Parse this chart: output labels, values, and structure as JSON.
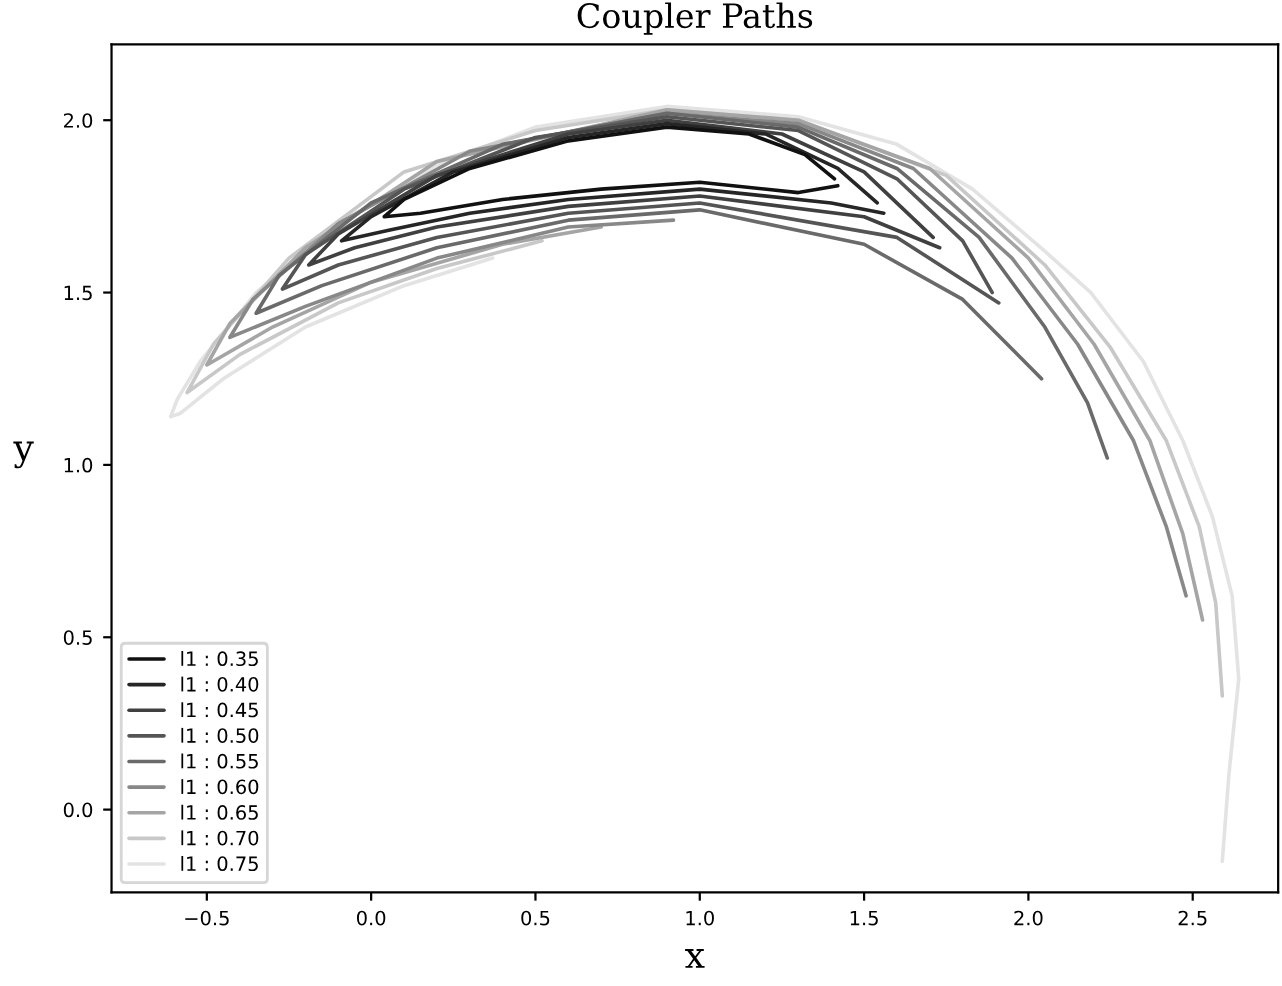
{
  "chart_data": {
    "type": "line",
    "title": "Coupler Paths",
    "xlabel": "x",
    "ylabel": "y",
    "xlim": [
      -0.79,
      2.76
    ],
    "ylim": [
      -0.24,
      2.22
    ],
    "xticks": [
      {
        "value": -0.5,
        "label": "−0.5"
      },
      {
        "value": 0,
        "label": "0.0"
      },
      0.5,
      {
        "value": 1,
        "label": "1.0"
      },
      1.5,
      {
        "value": 2,
        "label": "2.0"
      },
      2.5
    ],
    "yticks": [
      {
        "value": 0,
        "label": "0.0"
      },
      0.5,
      {
        "value": 1,
        "label": "1.0"
      },
      1.5,
      {
        "value": 2,
        "label": "2.0"
      }
    ],
    "grid": false,
    "legend": "bottom left",
    "marker": "none",
    "line_style": "solid",
    "series": [
      {
        "name": "l1 : 0.35",
        "color": "#111111",
        "x": [
          1.42,
          1.3,
          1.0,
          0.7,
          0.4,
          0.15,
          0.04,
          0.1,
          0.3,
          0.6,
          0.9,
          1.15,
          1.32,
          1.41
        ],
        "values": [
          1.81,
          1.79,
          1.82,
          1.8,
          1.77,
          1.73,
          1.72,
          1.77,
          1.86,
          1.94,
          1.98,
          1.96,
          1.9,
          1.83
        ]
      },
      {
        "name": "l1 : 0.40",
        "color": "#262626",
        "x": [
          1.56,
          1.4,
          1.0,
          0.6,
          0.3,
          0.05,
          -0.09,
          0.0,
          0.25,
          0.6,
          0.9,
          1.2,
          1.42,
          1.54
        ],
        "values": [
          1.73,
          1.76,
          1.8,
          1.77,
          1.73,
          1.68,
          1.65,
          1.72,
          1.85,
          1.95,
          1.99,
          1.96,
          1.86,
          1.76
        ]
      },
      {
        "name": "l1 : 0.45",
        "color": "#404040",
        "x": [
          1.73,
          1.5,
          1.0,
          0.6,
          0.2,
          -0.05,
          -0.19,
          -0.1,
          0.2,
          0.6,
          0.9,
          1.25,
          1.5,
          1.71
        ],
        "values": [
          1.63,
          1.72,
          1.78,
          1.75,
          1.69,
          1.63,
          1.58,
          1.67,
          1.84,
          1.96,
          2.0,
          1.96,
          1.85,
          1.66
        ]
      },
      {
        "name": "l1 : 0.50",
        "color": "#555555",
        "x": [
          1.91,
          1.6,
          1.0,
          0.6,
          0.2,
          -0.1,
          -0.27,
          -0.2,
          0.1,
          0.5,
          0.9,
          1.3,
          1.6,
          1.8,
          1.89
        ],
        "values": [
          1.47,
          1.66,
          1.76,
          1.73,
          1.66,
          1.58,
          1.51,
          1.61,
          1.8,
          1.95,
          2.01,
          1.97,
          1.83,
          1.65,
          1.5
        ]
      },
      {
        "name": "l1 : 0.55",
        "color": "#6a6a6a",
        "x": [
          2.04,
          1.8,
          1.5,
          1.0,
          0.6,
          0.2,
          -0.15,
          -0.35,
          -0.28,
          0.0,
          0.4,
          0.9,
          1.3,
          1.6,
          1.85,
          2.05,
          2.18,
          2.24
        ],
        "values": [
          1.25,
          1.48,
          1.64,
          1.74,
          1.71,
          1.63,
          1.52,
          1.44,
          1.55,
          1.76,
          1.93,
          2.02,
          1.98,
          1.86,
          1.66,
          1.4,
          1.18,
          1.02
        ]
      },
      {
        "name": "l1 : 0.60",
        "color": "#888888",
        "x": [
          0.92,
          0.6,
          0.2,
          -0.2,
          -0.43,
          -0.36,
          -0.1,
          0.3,
          0.9,
          1.3,
          1.65,
          1.95,
          2.15,
          2.32,
          2.42,
          2.48
        ],
        "values": [
          1.71,
          1.69,
          1.6,
          1.46,
          1.37,
          1.48,
          1.7,
          1.91,
          2.02,
          1.99,
          1.86,
          1.6,
          1.35,
          1.07,
          0.82,
          0.62
        ]
      },
      {
        "name": "l1 : 0.65",
        "color": "#a5a5a5",
        "x": [
          0.7,
          0.4,
          0.0,
          -0.3,
          -0.5,
          -0.43,
          -0.2,
          0.2,
          0.9,
          1.3,
          1.7,
          2.0,
          2.2,
          2.37,
          2.47,
          2.53
        ],
        "values": [
          1.69,
          1.64,
          1.53,
          1.4,
          1.29,
          1.41,
          1.63,
          1.88,
          2.03,
          2.0,
          1.86,
          1.6,
          1.35,
          1.07,
          0.8,
          0.55
        ]
      },
      {
        "name": "l1 : 0.70",
        "color": "#c8c8c8",
        "x": [
          0.52,
          0.2,
          -0.1,
          -0.4,
          -0.56,
          -0.48,
          -0.25,
          0.1,
          0.5,
          0.9,
          1.3,
          1.75,
          2.05,
          2.25,
          2.42,
          2.52,
          2.57,
          2.59
        ],
        "values": [
          1.65,
          1.57,
          1.47,
          1.32,
          1.21,
          1.35,
          1.6,
          1.85,
          1.97,
          2.03,
          2.0,
          1.84,
          1.58,
          1.34,
          1.07,
          0.82,
          0.6,
          0.33
        ]
      },
      {
        "name": "l1 : 0.75",
        "color": "#e3e3e3",
        "x": [
          0.37,
          0.1,
          -0.2,
          -0.45,
          -0.58,
          -0.61,
          -0.59,
          -0.52,
          -0.35,
          -0.1,
          0.2,
          0.5,
          0.9,
          1.3,
          1.6,
          1.83,
          2.05,
          2.19,
          2.35,
          2.47,
          2.56,
          2.62,
          2.64,
          2.61,
          2.59
        ],
        "values": [
          1.6,
          1.52,
          1.4,
          1.25,
          1.15,
          1.14,
          1.19,
          1.3,
          1.5,
          1.7,
          1.87,
          1.98,
          2.04,
          2.01,
          1.93,
          1.8,
          1.62,
          1.5,
          1.3,
          1.07,
          0.85,
          0.62,
          0.38,
          0.1,
          -0.15
        ]
      }
    ]
  }
}
